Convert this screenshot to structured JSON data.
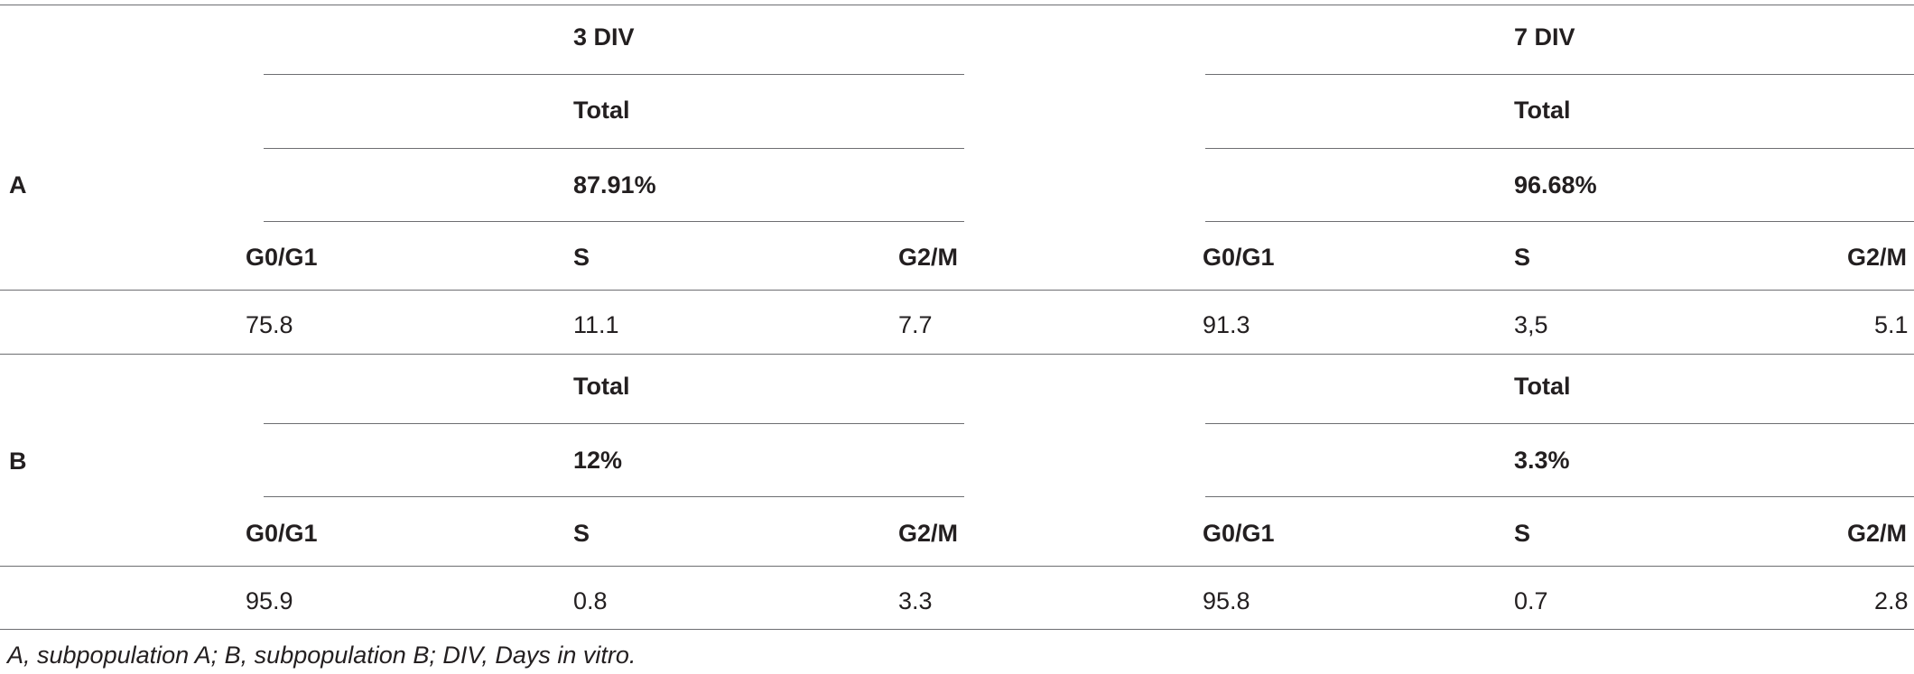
{
  "table": {
    "headers": {
      "col1": "3 DIV",
      "col2": "7 DIV"
    },
    "subpopulation_a": {
      "label": "A",
      "total_label": "Total",
      "total_3div": "87.91%",
      "total_7div": "96.68%",
      "phases": [
        "G0/G1",
        "S",
        "G2/M"
      ],
      "values_3div": [
        "75.8",
        "11.1",
        "7.7"
      ],
      "values_7div": [
        "91.3",
        "3,5",
        "5.1"
      ]
    },
    "subpopulation_b": {
      "label": "B",
      "total_label": "Total",
      "total_3div": "12%",
      "total_7div": "3.3%",
      "phases": [
        "G0/G1",
        "S",
        "G2/M"
      ],
      "values_3div": [
        "95.9",
        "0.8",
        "3.3"
      ],
      "values_7div": [
        "95.8",
        "0.7",
        "2.8"
      ]
    }
  },
  "footnote": "A, subpopulation A; B, subpopulation B; DIV, Days in vitro."
}
